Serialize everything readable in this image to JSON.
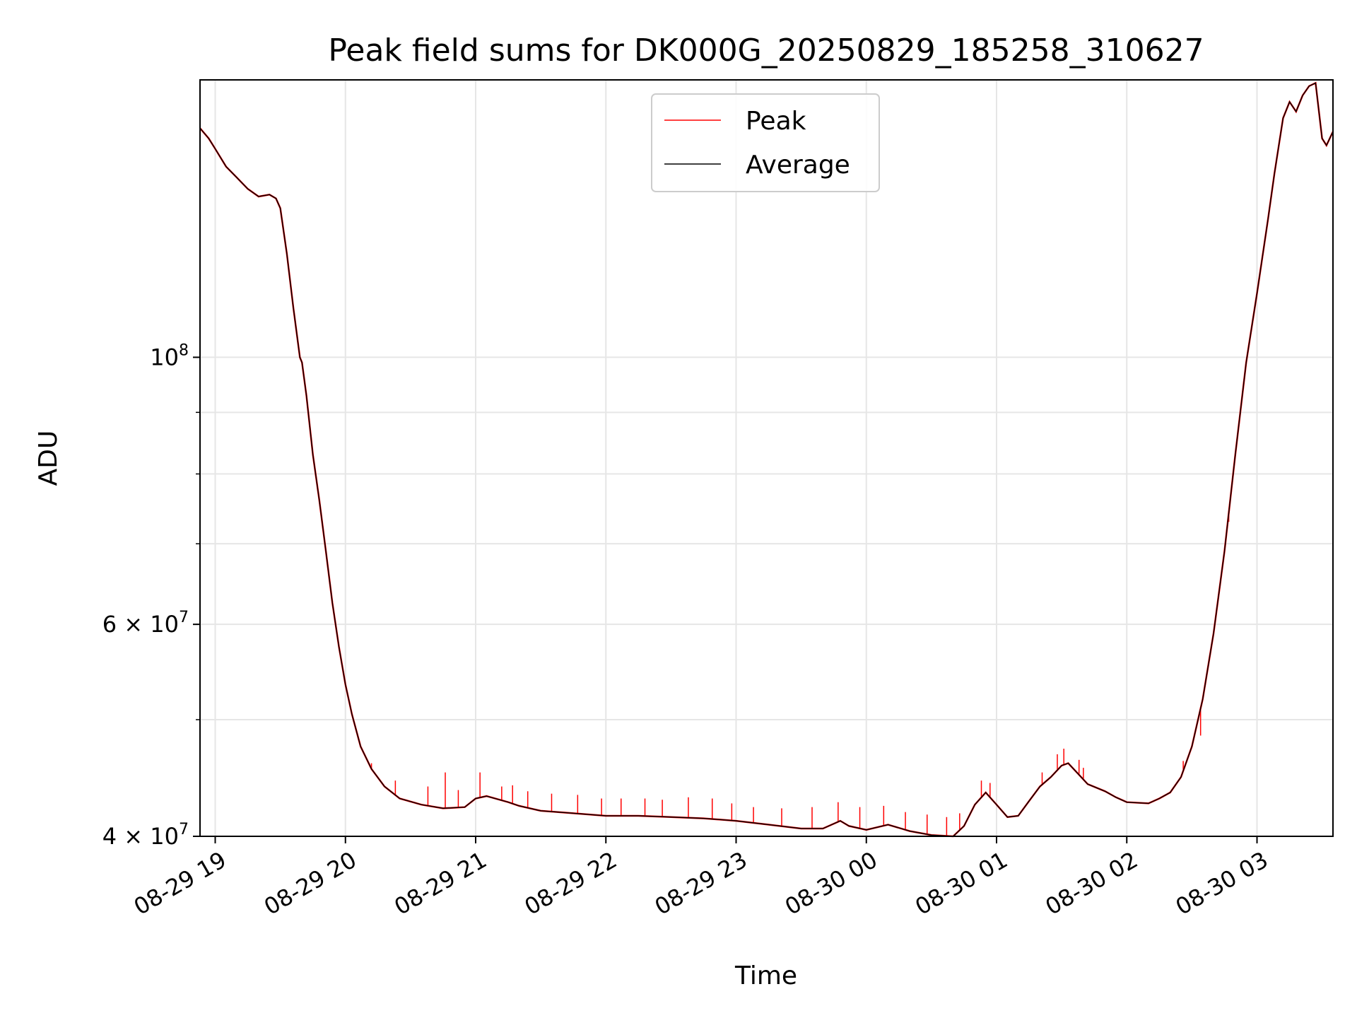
{
  "chart_data": {
    "type": "line",
    "title": "Peak field sums for DK000G_20250829_185258_310627",
    "xlabel": "Time",
    "ylabel": "ADU",
    "yscale": "log",
    "xlim": [
      "2025-08-29 18:53",
      "2025-08-30 03:35"
    ],
    "ylim": [
      40000000,
      170000000
    ],
    "grid": true,
    "legend": "top-center",
    "x_ticks": [
      {
        "t": "2025-08-29 19:00",
        "label": "08-29 19"
      },
      {
        "t": "2025-08-29 20:00",
        "label": "08-29 20"
      },
      {
        "t": "2025-08-29 21:00",
        "label": "08-29 21"
      },
      {
        "t": "2025-08-29 22:00",
        "label": "08-29 22"
      },
      {
        "t": "2025-08-29 23:00",
        "label": "08-29 23"
      },
      {
        "t": "2025-08-30 00:00",
        "label": "08-30 00"
      },
      {
        "t": "2025-08-30 01:00",
        "label": "08-30 01"
      },
      {
        "t": "2025-08-30 02:00",
        "label": "08-30 02"
      },
      {
        "t": "2025-08-30 03:00",
        "label": "08-30 03"
      }
    ],
    "y_ticks_major": [
      {
        "v": 40000000,
        "mant": "4",
        "exp": "7"
      },
      {
        "v": 60000000,
        "mant": "6",
        "exp": "7"
      },
      {
        "v": 100000000,
        "mant": "",
        "exp": "8"
      }
    ],
    "y_gridlines": [
      40000000,
      50000000,
      60000000,
      70000000,
      80000000,
      90000000,
      100000000
    ],
    "series": [
      {
        "name": "Average",
        "color": "#000000",
        "points": [
          [
            "2025-08-29 18:53",
            155000000.0
          ],
          [
            "2025-08-29 18:57",
            152000000.0
          ],
          [
            "2025-08-29 19:00",
            149000000.0
          ],
          [
            "2025-08-29 19:05",
            144000000.0
          ],
          [
            "2025-08-29 19:10",
            141000000.0
          ],
          [
            "2025-08-29 19:15",
            138000000.0
          ],
          [
            "2025-08-29 19:20",
            136000000.0
          ],
          [
            "2025-08-29 19:25",
            136500000.0
          ],
          [
            "2025-08-29 19:28",
            135500000.0
          ],
          [
            "2025-08-29 19:30",
            133000000.0
          ],
          [
            "2025-08-29 19:33",
            122000000.0
          ],
          [
            "2025-08-29 19:36",
            110000000.0
          ],
          [
            "2025-08-29 19:39",
            100000000.0
          ],
          [
            "2025-08-29 19:40",
            99000000.0
          ],
          [
            "2025-08-29 19:42",
            93000000.0
          ],
          [
            "2025-08-29 19:45",
            83000000.0
          ],
          [
            "2025-08-29 19:48",
            76000000.0
          ],
          [
            "2025-08-29 19:51",
            69000000.0
          ],
          [
            "2025-08-29 19:54",
            62500000.0
          ],
          [
            "2025-08-29 19:57",
            57500000.0
          ],
          [
            "2025-08-29 20:00",
            53500000.0
          ],
          [
            "2025-08-29 20:03",
            50500000.0
          ],
          [
            "2025-08-29 20:07",
            47500000.0
          ],
          [
            "2025-08-29 20:12",
            45500000.0
          ],
          [
            "2025-08-29 20:18",
            44000000.0
          ],
          [
            "2025-08-29 20:25",
            43000000.0
          ],
          [
            "2025-08-29 20:35",
            42500000.0
          ],
          [
            "2025-08-29 20:45",
            42200000.0
          ],
          [
            "2025-08-29 20:55",
            42300000.0
          ],
          [
            "2025-08-29 21:00",
            43000000.0
          ],
          [
            "2025-08-29 21:05",
            43200000.0
          ],
          [
            "2025-08-29 21:15",
            42700000.0
          ],
          [
            "2025-08-29 21:20",
            42400000.0
          ],
          [
            "2025-08-29 21:30",
            42000000.0
          ],
          [
            "2025-08-29 21:45",
            41800000.0
          ],
          [
            "2025-08-29 22:00",
            41600000.0
          ],
          [
            "2025-08-29 22:15",
            41600000.0
          ],
          [
            "2025-08-29 22:30",
            41500000.0
          ],
          [
            "2025-08-29 22:45",
            41400000.0
          ],
          [
            "2025-08-29 23:00",
            41200000.0
          ],
          [
            "2025-08-29 23:15",
            40900000.0
          ],
          [
            "2025-08-29 23:30",
            40600000.0
          ],
          [
            "2025-08-29 23:40",
            40600000.0
          ],
          [
            "2025-08-29 23:48",
            41200000.0
          ],
          [
            "2025-08-29 23:52",
            40800000.0
          ],
          [
            "2025-08-30 00:00",
            40500000.0
          ],
          [
            "2025-08-30 00:10",
            40900000.0
          ],
          [
            "2025-08-30 00:20",
            40400000.0
          ],
          [
            "2025-08-30 00:30",
            40100000.0
          ],
          [
            "2025-08-30 00:40",
            40000000.0
          ],
          [
            "2025-08-30 00:45",
            40800000.0
          ],
          [
            "2025-08-30 00:50",
            42500000.0
          ],
          [
            "2025-08-30 00:55",
            43500000.0
          ],
          [
            "2025-08-30 01:00",
            42500000.0
          ],
          [
            "2025-08-30 01:05",
            41500000.0
          ],
          [
            "2025-08-30 01:10",
            41600000.0
          ],
          [
            "2025-08-30 01:15",
            42800000.0
          ],
          [
            "2025-08-30 01:20",
            44000000.0
          ],
          [
            "2025-08-30 01:25",
            44800000.0
          ],
          [
            "2025-08-30 01:30",
            45800000.0
          ],
          [
            "2025-08-30 01:33",
            46000000.0
          ],
          [
            "2025-08-30 01:37",
            45200000.0
          ],
          [
            "2025-08-30 01:42",
            44200000.0
          ],
          [
            "2025-08-30 01:50",
            43600000.0
          ],
          [
            "2025-08-30 01:55",
            43100000.0
          ],
          [
            "2025-08-30 02:00",
            42700000.0
          ],
          [
            "2025-08-30 02:10",
            42600000.0
          ],
          [
            "2025-08-30 02:15",
            43000000.0
          ],
          [
            "2025-08-30 02:20",
            43500000.0
          ],
          [
            "2025-08-30 02:25",
            44800000.0
          ],
          [
            "2025-08-30 02:30",
            47500000.0
          ],
          [
            "2025-08-30 02:35",
            52000000.0
          ],
          [
            "2025-08-30 02:40",
            59000000.0
          ],
          [
            "2025-08-30 02:45",
            69000000.0
          ],
          [
            "2025-08-30 02:50",
            83000000.0
          ],
          [
            "2025-08-30 02:55",
            99000000.0
          ],
          [
            "2025-08-30 03:00",
            113000000.0
          ],
          [
            "2025-08-30 03:05",
            130000000.0
          ],
          [
            "2025-08-30 03:08",
            142000000.0
          ],
          [
            "2025-08-30 03:12",
            158000000.0
          ],
          [
            "2025-08-30 03:15",
            163000000.0
          ],
          [
            "2025-08-30 03:18",
            160000000.0
          ],
          [
            "2025-08-30 03:21",
            165000000.0
          ],
          [
            "2025-08-30 03:24",
            168000000.0
          ],
          [
            "2025-08-30 03:27",
            169000000.0
          ],
          [
            "2025-08-30 03:30",
            152000000.0
          ],
          [
            "2025-08-30 03:32",
            150000000.0
          ],
          [
            "2025-08-30 03:35",
            154000000.0
          ]
        ]
      },
      {
        "name": "Peak",
        "color": "#ff0000",
        "spikes": [
          [
            "2025-08-29 20:12",
            46000000.0
          ],
          [
            "2025-08-29 20:23",
            44500000.0
          ],
          [
            "2025-08-29 20:38",
            44000000.0
          ],
          [
            "2025-08-29 20:46",
            45200000.0
          ],
          [
            "2025-08-29 20:52",
            43700000.0
          ],
          [
            "2025-08-29 21:02",
            45200000.0
          ],
          [
            "2025-08-29 21:12",
            44000000.0
          ],
          [
            "2025-08-29 21:17",
            44100000.0
          ],
          [
            "2025-08-29 21:24",
            43600000.0
          ],
          [
            "2025-08-29 21:35",
            43400000.0
          ],
          [
            "2025-08-29 21:47",
            43300000.0
          ],
          [
            "2025-08-29 21:58",
            43000000.0
          ],
          [
            "2025-08-29 22:07",
            43000000.0
          ],
          [
            "2025-08-29 22:18",
            43000000.0
          ],
          [
            "2025-08-29 22:26",
            42900000.0
          ],
          [
            "2025-08-29 22:38",
            43100000.0
          ],
          [
            "2025-08-29 22:49",
            43000000.0
          ],
          [
            "2025-08-29 22:58",
            42600000.0
          ],
          [
            "2025-08-29 23:08",
            42300000.0
          ],
          [
            "2025-08-29 23:21",
            42200000.0
          ],
          [
            "2025-08-29 23:35",
            42300000.0
          ],
          [
            "2025-08-29 23:47",
            42700000.0
          ],
          [
            "2025-08-29 23:57",
            42300000.0
          ],
          [
            "2025-08-30 00:08",
            42400000.0
          ],
          [
            "2025-08-30 00:18",
            41900000.0
          ],
          [
            "2025-08-30 00:28",
            41700000.0
          ],
          [
            "2025-08-30 00:37",
            41500000.0
          ],
          [
            "2025-08-30 00:43",
            41800000.0
          ],
          [
            "2025-08-30 00:53",
            44500000.0
          ],
          [
            "2025-08-30 00:57",
            44300000.0
          ],
          [
            "2025-08-30 01:21",
            45200000.0
          ],
          [
            "2025-08-30 01:28",
            46800000.0
          ],
          [
            "2025-08-30 01:31",
            47300000.0
          ],
          [
            "2025-08-30 01:38",
            46300000.0
          ],
          [
            "2025-08-30 01:40",
            45600000.0
          ],
          [
            "2025-08-30 02:26",
            46200000.0
          ],
          [
            "2025-08-30 02:34",
            48500000.0
          ],
          [
            "2025-08-30 02:47",
            73000000.0
          ]
        ]
      }
    ]
  }
}
